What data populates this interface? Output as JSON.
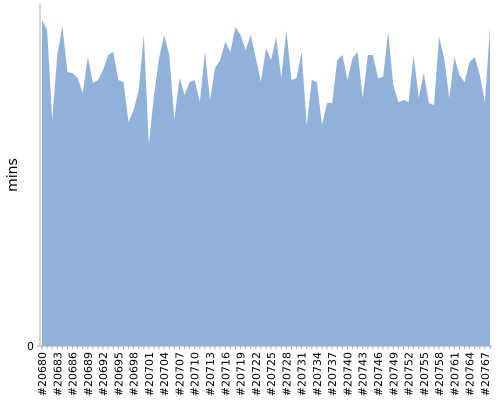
{
  "chart_data": {
    "type": "area",
    "ylabel": "mins",
    "color": "#8fb1da",
    "categories": [
      "#20680",
      null,
      null,
      "#20683",
      null,
      null,
      "#20686",
      null,
      null,
      "#20689",
      null,
      null,
      "#20692",
      null,
      null,
      "#20695",
      null,
      null,
      "#20698",
      null,
      null,
      "#20701",
      null,
      null,
      "#20704",
      null,
      null,
      "#20707",
      null,
      null,
      "#20710",
      null,
      null,
      "#20713",
      null,
      null,
      "#20716",
      null,
      null,
      "#20719",
      null,
      null,
      "#20722",
      null,
      null,
      "#20725",
      null,
      null,
      "#20728",
      null,
      null,
      "#20731",
      null,
      null,
      "#20734",
      null,
      null,
      "#20737",
      null,
      null,
      "#20740",
      null,
      null,
      "#20743",
      null,
      null,
      "#20746",
      null,
      null,
      "#20749",
      null,
      null,
      "#20752",
      null,
      null,
      "#20755",
      null,
      null,
      "#20758",
      null,
      null,
      "#20761",
      null,
      null,
      "#20764",
      null,
      null,
      "#20767",
      null
    ],
    "values": [
      32.6,
      31.6,
      22.6,
      29.1,
      32,
      27.4,
      27.3,
      26.8,
      25.3,
      28.9,
      26.3,
      26.6,
      27.6,
      29.1,
      29.4,
      26.6,
      26.4,
      22.4,
      23.6,
      25.6,
      31.1,
      20.1,
      25.1,
      28.8,
      31.1,
      29.1,
      22.6,
      26.8,
      25.1,
      26.4,
      26.6,
      24.4,
      29.4,
      24.6,
      27.8,
      28.6,
      30.4,
      29.4,
      31.9,
      31.1,
      29.6,
      31.1,
      28.8,
      26.4,
      29.8,
      28.6,
      30.9,
      26.8,
      31.6,
      26.6,
      26.8,
      29.4,
      22.1,
      26.6,
      26.4,
      22.1,
      24.3,
      24.3,
      28.6,
      29.1,
      26.6,
      28.8,
      29.4,
      24.8,
      29.1,
      29.1,
      26.8,
      26.9,
      31.4,
      26.1,
      24.4,
      24.6,
      24.4,
      29.1,
      24.8,
      27.3,
      24.3,
      24.1,
      30.9,
      28.8,
      24.8,
      28.9,
      27.1,
      26.4,
      28.4,
      28.9,
      27.1,
      24.4,
      31.8
    ],
    "ylim": [
      0,
      34
    ],
    "yticks": [
      0
    ]
  }
}
